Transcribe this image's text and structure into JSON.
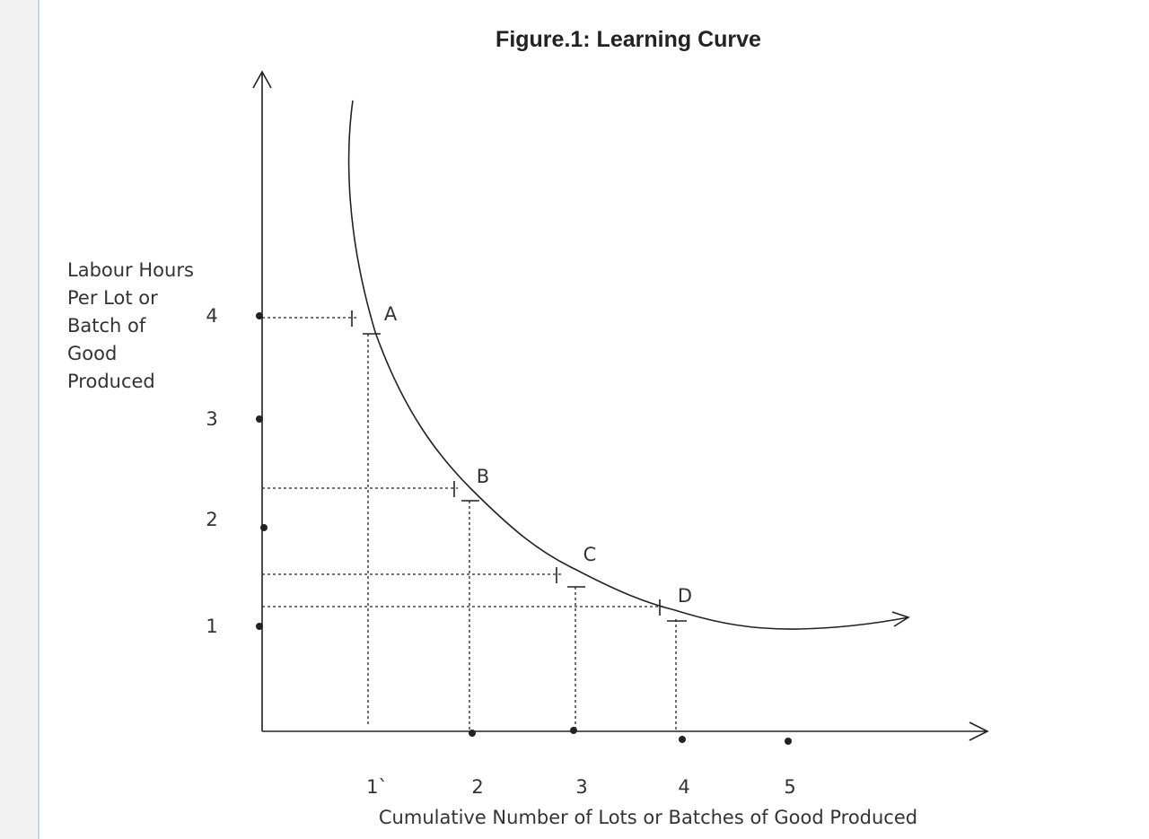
{
  "figure": {
    "title": "Figure.1: Learning Curve",
    "y_axis_label": [
      "Labour Hours",
      "Per Lot or",
      "Batch of",
      "Good",
      "Produced"
    ],
    "y_ticks": [
      "4",
      "3",
      "2",
      "1"
    ],
    "x_ticks": [
      "1`",
      "2",
      "3",
      "4",
      "5"
    ],
    "x_axis_label": "Cumulative Number of Lots or Batches of Good Produced",
    "points": [
      "A",
      "B",
      "C",
      "D"
    ]
  }
}
